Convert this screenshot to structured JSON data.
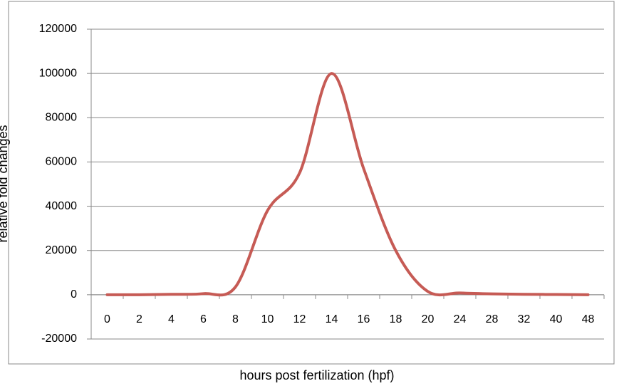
{
  "chart_data": {
    "type": "line",
    "x_label": "hours post fertilization (hpf)",
    "y_label": "relative fold changes",
    "categories": [
      "0",
      "2",
      "4",
      "6",
      "8",
      "10",
      "12",
      "14",
      "16",
      "18",
      "20",
      "24",
      "28",
      "32",
      "40",
      "48"
    ],
    "series": [
      {
        "name": "relative fold changes",
        "color": "#c65b55",
        "values": [
          0,
          0,
          200,
          500,
          3500,
          38000,
          55000,
          100000,
          57000,
          20000,
          1500,
          800,
          400,
          200,
          100,
          0
        ]
      }
    ],
    "ylim": [
      -20000,
      120000
    ],
    "yticks": [
      -20000,
      0,
      20000,
      40000,
      60000,
      80000,
      100000,
      120000
    ],
    "grid": true
  }
}
